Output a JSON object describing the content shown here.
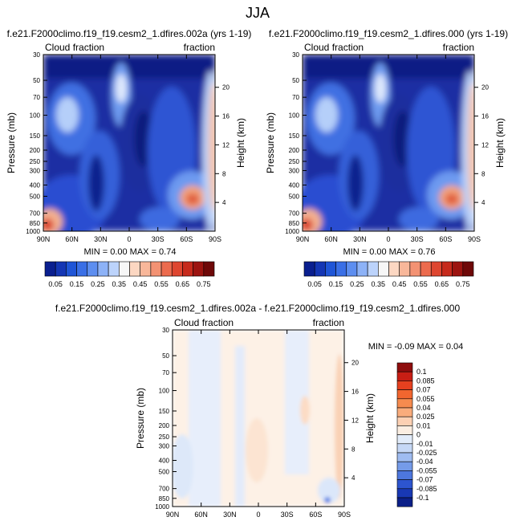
{
  "page_title": "JJA",
  "panels": [
    {
      "title": "f.e21.F2000climo.f19_f19.cesm2_1.dfires.002a (yrs 1-19)",
      "left_label": "Cloud fraction",
      "right_label": "fraction",
      "min_max": "MIN =  0.00  MAX =  0.74"
    },
    {
      "title": "f.e21.F2000climo.f19_f19.cesm2_1.dfires.000 (yrs 1-19)",
      "left_label": "Cloud fraction",
      "right_label": "fraction",
      "min_max": "MIN =  0.00  MAX =  0.76"
    },
    {
      "title": "f.e21.F2000climo.f19_f19.cesm2_1.dfires.002a - f.e21.F2000climo.f19_f19.cesm2_1.dfires.000",
      "left_label": "Cloud fraction",
      "right_label": "fraction",
      "min_max": "MIN = -0.09  MAX =  0.04"
    }
  ],
  "chart_data": [
    {
      "type": "heatmap",
      "title": "f.e21.F2000climo.f19_f19.cesm2_1.dfires.002a (yrs 1-19)",
      "xlabel": "",
      "ylabel": "Pressure (mb)",
      "y2label": "Height (km)",
      "x_ticks": [
        "90N",
        "60N",
        "30N",
        "0",
        "30S",
        "60S",
        "90S"
      ],
      "y_ticks": [
        "30",
        "50",
        "70",
        "100",
        "150",
        "200",
        "250",
        "300",
        "400",
        "500",
        "700",
        "850",
        "1000"
      ],
      "y2_ticks": [
        "20",
        "16",
        "12",
        "8",
        "4"
      ],
      "min": 0.0,
      "max": 0.74
    },
    {
      "type": "heatmap",
      "title": "f.e21.F2000climo.f19_f19.cesm2_1.dfires.000 (yrs 1-19)",
      "xlabel": "",
      "ylabel": "Pressure (mb)",
      "y2label": "Height (km)",
      "x_ticks": [
        "90N",
        "60N",
        "30N",
        "0",
        "30S",
        "60S",
        "90S"
      ],
      "y_ticks": [
        "30",
        "50",
        "70",
        "100",
        "150",
        "200",
        "250",
        "300",
        "400",
        "500",
        "700",
        "850",
        "1000"
      ],
      "y2_ticks": [
        "20",
        "16",
        "12",
        "8",
        "4"
      ],
      "min": 0.0,
      "max": 0.76
    },
    {
      "type": "heatmap",
      "title": "f.e21.F2000climo.f19_f19.cesm2_1.dfires.002a - f.e21.F2000climo.f19_f19.cesm2_1.dfires.000",
      "xlabel": "",
      "ylabel": "Pressure (mb)",
      "y2label": "Height (km)",
      "x_ticks": [
        "90N",
        "60N",
        "30N",
        "0",
        "30S",
        "60S",
        "90S"
      ],
      "y_ticks": [
        "30",
        "50",
        "70",
        "100",
        "150",
        "200",
        "250",
        "300",
        "400",
        "500",
        "700",
        "850",
        "1000"
      ],
      "y2_ticks": [
        "20",
        "16",
        "12",
        "8",
        "4"
      ],
      "min": -0.09,
      "max": 0.04
    }
  ],
  "colorbar_abs": {
    "labels": [
      "0.05",
      "0.15",
      "0.25",
      "0.35",
      "0.45",
      "0.55",
      "0.65",
      "0.75"
    ],
    "colors": [
      "#0a1f8f",
      "#1436b4",
      "#1f55d6",
      "#3a6fe6",
      "#5d8ef0",
      "#8db2f7",
      "#bcd3fb",
      "#f7f7f7",
      "#fcd7c2",
      "#f8b79a",
      "#f39273",
      "#ec6b4e",
      "#de4630",
      "#c62a1c",
      "#9c1410",
      "#6e0808"
    ]
  },
  "colorbar_diff": {
    "labels": [
      "0.1",
      "0.085",
      "0.07",
      "0.055",
      "0.04",
      "0.025",
      "0.01",
      "0",
      "-0.01",
      "-0.025",
      "-0.04",
      "-0.055",
      "-0.07",
      "-0.085",
      "-0.1"
    ],
    "colors": [
      "#8e0d0d",
      "#c81e14",
      "#e6401f",
      "#f2662f",
      "#f68b4f",
      "#f9ac7c",
      "#fcd0b3",
      "#fbeee2",
      "#e2ecfa",
      "#c6d8f6",
      "#9fbcf1",
      "#759be9",
      "#4d77de",
      "#2d55cf",
      "#1838b4",
      "#0b1f88"
    ]
  },
  "colors": {
    "deep_blue": "#1a2a9c",
    "mid_blue": "#3a63d6",
    "pale": "#f3f5fb",
    "warm": "#f1a27d",
    "hot": "#c1261c"
  }
}
